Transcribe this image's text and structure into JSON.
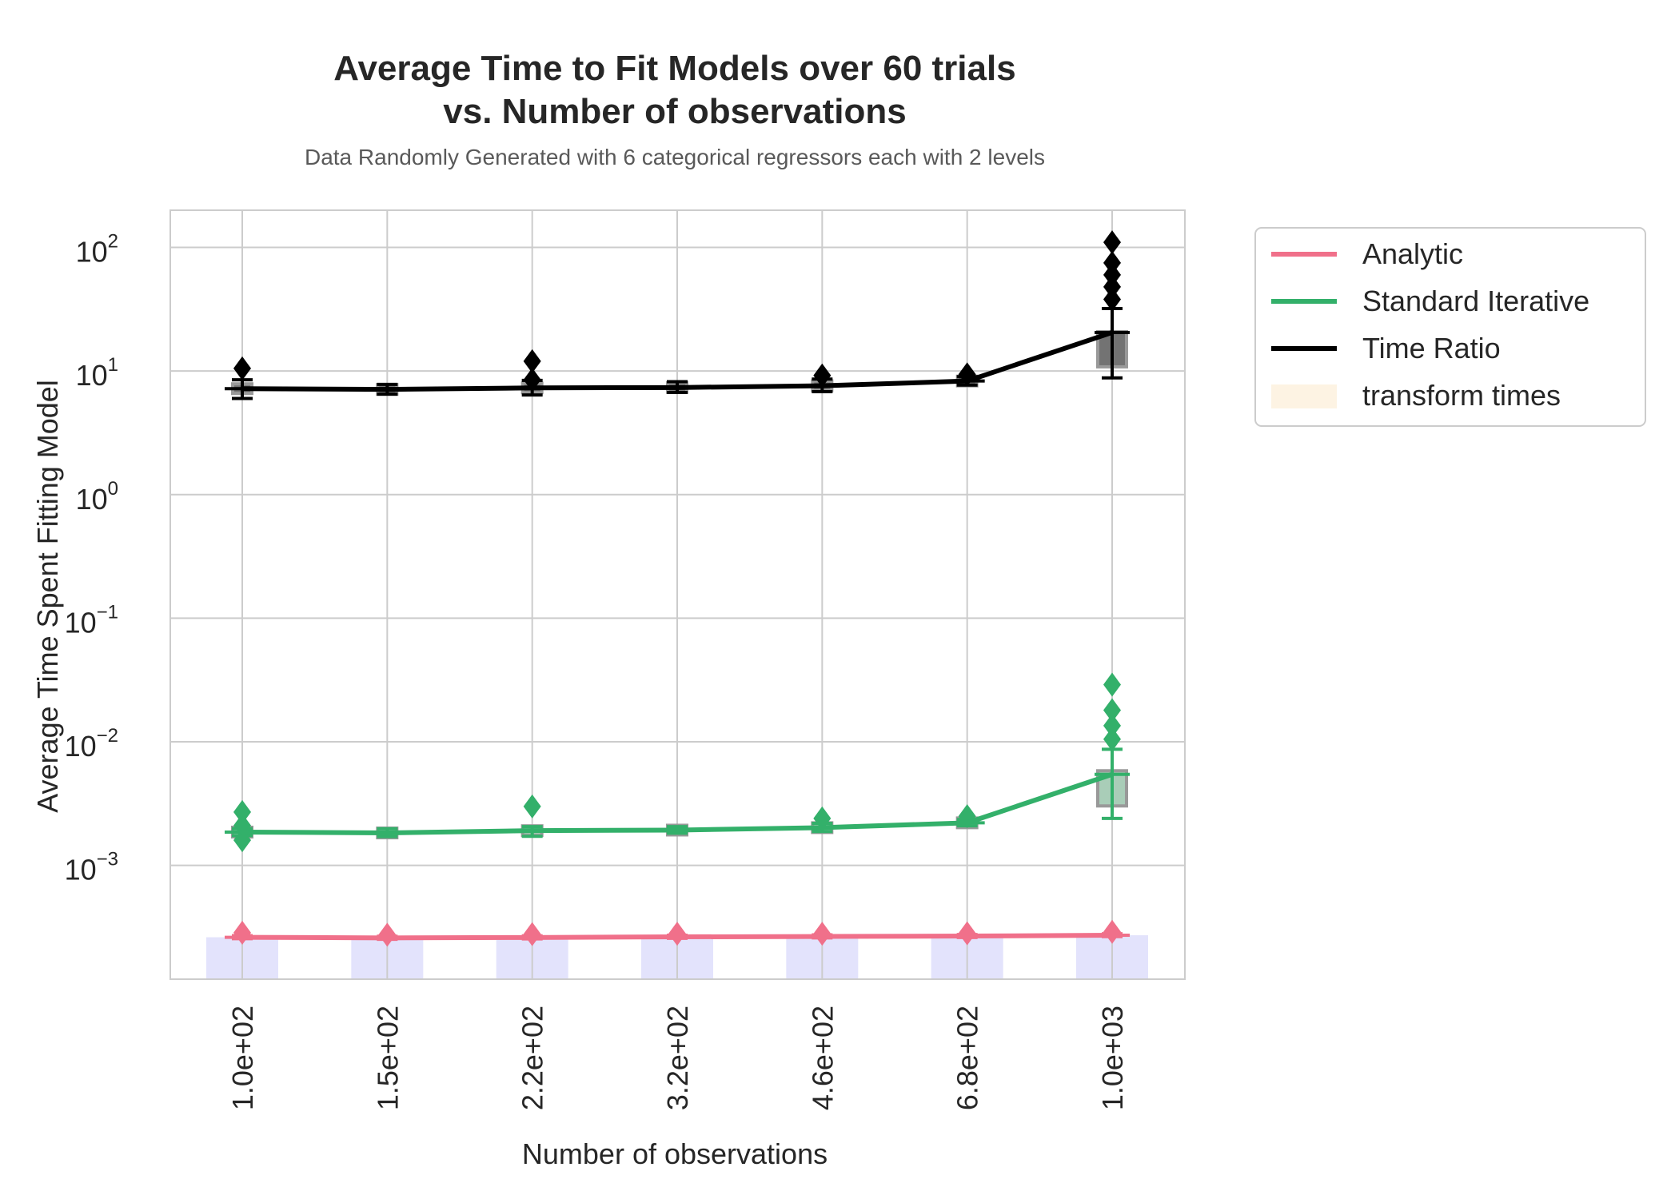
{
  "chart_data": {
    "type": "line",
    "title_line1": "Average Time to Fit Models over 60 trials",
    "title_line2": "vs. Number of observations",
    "subtitle": "Data Randomly Generated with 6 categorical regressors each with 2 levels",
    "xlabel": "Number of observations",
    "ylabel": "Average Time Spent Fitting Model",
    "y_scale": "log",
    "ylim": [
      0.00012,
      200
    ],
    "y_ticks": [
      0.001,
      0.01,
      0.1,
      1,
      10,
      100
    ],
    "y_tick_labels": [
      {
        "base": "10",
        "exp": "−3"
      },
      {
        "base": "10",
        "exp": "−2"
      },
      {
        "base": "10",
        "exp": "−1"
      },
      {
        "base": "10",
        "exp": "0"
      },
      {
        "base": "10",
        "exp": "1"
      },
      {
        "base": "10",
        "exp": "2"
      }
    ],
    "grid": true,
    "legend_position": "outside-right",
    "categories": [
      "1.0e+02",
      "1.5e+02",
      "2.2e+02",
      "3.2e+02",
      "4.6e+02",
      "6.8e+02",
      "1.0e+03"
    ],
    "series": [
      {
        "name": "Analytic",
        "color": "#f0708a",
        "values": [
          0.000262,
          0.000259,
          0.000261,
          0.000264,
          0.000266,
          0.000268,
          0.000272
        ],
        "err_low": [
          0.000255,
          0.000252,
          0.000254,
          0.000257,
          0.000259,
          0.000261,
          0.000265
        ],
        "err_high": [
          0.00027,
          0.000267,
          0.000269,
          0.000272,
          0.000274,
          0.000276,
          0.00028
        ],
        "outliers": [
          [
            0.000285
          ],
          [
            0.000275
          ],
          [
            0.000278
          ],
          [
            0.00028
          ],
          [
            0.00028
          ],
          [
            0.000282
          ],
          [
            0.00029
          ]
        ]
      },
      {
        "name": "Standard Iterative",
        "color": "#33b06a",
        "values": [
          0.00186,
          0.00183,
          0.00191,
          0.00193,
          0.00202,
          0.00221,
          0.00545
        ],
        "err_low": [
          0.00174,
          0.00171,
          0.00172,
          0.00182,
          0.00188,
          0.00209,
          0.0024
        ],
        "err_high": [
          0.00198,
          0.00198,
          0.00206,
          0.00206,
          0.00219,
          0.00235,
          0.0087
        ],
        "outliers": [
          [
            0.0016,
            0.0021,
            0.0027
          ],
          [],
          [
            0.003
          ],
          [],
          [
            0.0024
          ],
          [
            0.0025
          ],
          [
            0.0105,
            0.0135,
            0.018,
            0.029
          ]
        ]
      },
      {
        "name": "Time Ratio",
        "color": "#000000",
        "values": [
          7.2,
          7.1,
          7.3,
          7.35,
          7.6,
          8.3,
          20.5
        ],
        "err_low": [
          6.0,
          6.5,
          6.4,
          6.7,
          6.8,
          7.7,
          8.8
        ],
        "err_high": [
          8.5,
          7.8,
          8.4,
          8.2,
          8.6,
          9.0,
          32.0
        ],
        "outliers": [
          [
            10.5
          ],
          [],
          [
            8.5,
            12.0
          ],
          [],
          [
            9.2
          ],
          [
            9.4
          ],
          [
            38,
            48,
            60,
            75,
            110
          ]
        ]
      }
    ],
    "boxes": {
      "Standard Iterative": [
        0.00186,
        0.00183,
        0.00191,
        0.00193,
        0.00202,
        0.00221,
        0.0042
      ],
      "Time Ratio": [
        7.2,
        7.1,
        7.3,
        7.35,
        7.6,
        8.3,
        15.0
      ]
    },
    "transform_times": {
      "name": "transform times",
      "color": "#e3e3fc",
      "legend_color": "#fdf3e3",
      "values": [
        0.000262,
        0.000259,
        0.000261,
        0.000264,
        0.000266,
        0.000268,
        0.000272
      ]
    }
  }
}
